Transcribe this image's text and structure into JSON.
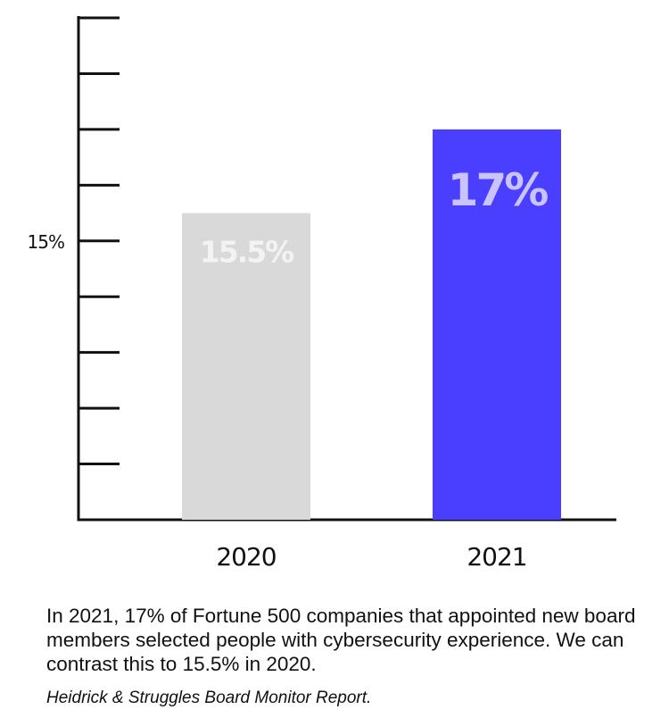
{
  "chart_data": {
    "type": "bar",
    "categories": [
      "2020",
      "2021"
    ],
    "values": [
      15.5,
      17
    ],
    "data_labels": [
      "15.5%",
      "17%"
    ],
    "y_tick_labels": [
      {
        "value": 15,
        "label": "15%"
      }
    ],
    "ylim": [
      10,
      19
    ],
    "tick_step": 1,
    "colors": [
      "#d9d9d9",
      "#4a3ffe"
    ],
    "label_colors": [
      "#f3f3f3",
      "#c9c4ff"
    ],
    "grid": false,
    "legend": "none"
  },
  "caption": "In 2021, 17% of Fortune 500 companies that appointed new board members selected people with cybersecurity experience. We can contrast this to 15.5% in 2020.",
  "source": "Heidrick & Struggles Board Monitor Report."
}
